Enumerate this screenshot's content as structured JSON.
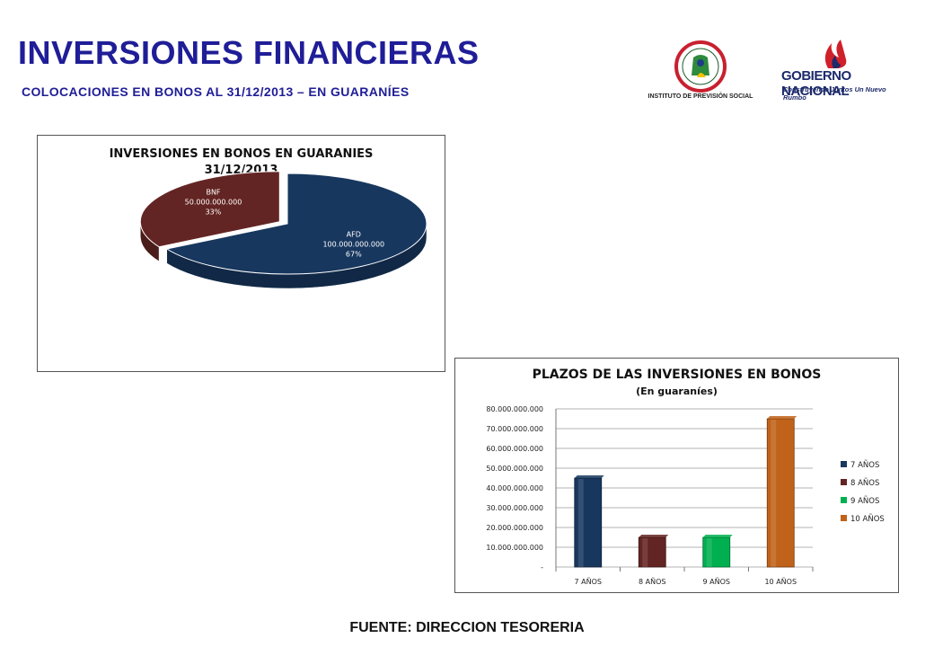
{
  "header": {
    "title": "INVERSIONES FINANCIERAS",
    "subtitle": "COLOCACIONES  EN BONOS AL 31/12/2013 – EN GUARANÍES"
  },
  "logos": {
    "ips_text": "INSTITUTO DE PREVISIÓN SOCIAL",
    "ips_ring_text": "INSTITUTO DE PREVISION SOCIAL",
    "gobierno_name": "GOBIERNO NACIONAL",
    "gobierno_tagline": "Construyendo Juntos Un Nuevo Rumbo"
  },
  "footer": {
    "source": "FUENTE: DIRECCION TESORERIA"
  },
  "chart_data": [
    {
      "type": "pie",
      "title": "INVERSIONES EN BONOS EN GUARANIES",
      "subtitle": "31/12/2013",
      "slices": [
        {
          "label": "AFD",
          "value_text": "100.000.000.000",
          "value": 100000000000,
          "percent_text": "67%",
          "color": "#17375e"
        },
        {
          "label": "BNF",
          "value_text": "50.000.000.000",
          "value": 50000000000,
          "percent_text": "33%",
          "color": "#632523"
        }
      ]
    },
    {
      "type": "bar",
      "title": "PLAZOS DE LAS INVERSIONES EN BONOS",
      "subtitle": "(En guaraníes)",
      "categories": [
        "7 AÑOS",
        "8 AÑOS",
        "9 AÑOS",
        "10 AÑOS"
      ],
      "values": [
        45000000000,
        15000000000,
        15000000000,
        75000000000
      ],
      "colors": [
        "#17375e",
        "#632523",
        "#00b050",
        "#c0621a"
      ],
      "legend": [
        "7 AÑOS",
        "8 AÑOS",
        "9 AÑOS",
        "10 AÑOS"
      ],
      "legend_position": "right",
      "ylim": [
        0,
        80000000000
      ],
      "yticks": [
        "-",
        "10.000.000.000",
        "20.000.000.000",
        "30.000.000.000",
        "40.000.000.000",
        "50.000.000.000",
        "60.000.000.000",
        "70.000.000.000",
        "80.000.000.000"
      ],
      "grid": true
    }
  ]
}
